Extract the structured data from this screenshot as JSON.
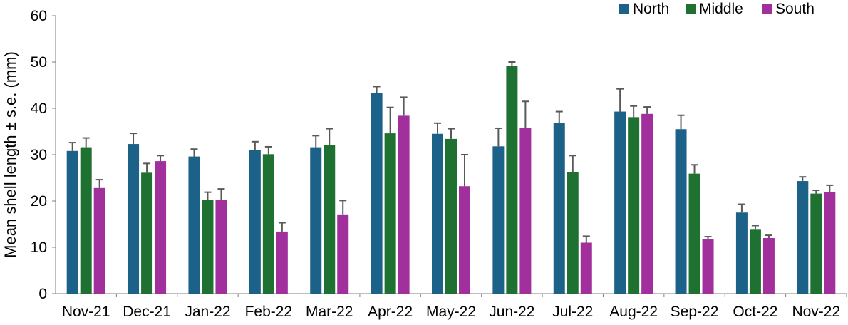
{
  "chart_data": {
    "type": "bar",
    "title": "",
    "xlabel": "",
    "ylabel": "Mean shell length ± s.e. (mm)",
    "ylim": [
      0,
      60
    ],
    "yticks": [
      0,
      10,
      20,
      30,
      40,
      50,
      60
    ],
    "grid": false,
    "legend_position": "top-right",
    "categories": [
      "Nov-21",
      "Dec-21",
      "Jan-22",
      "Feb-22",
      "Mar-22",
      "Apr-22",
      "May-22",
      "Jun-22",
      "Jul-22",
      "Aug-22",
      "Sep-22",
      "Oct-22",
      "Nov-22"
    ],
    "series": [
      {
        "name": "North",
        "color": "#1b6188",
        "values": [
          30.8,
          32.3,
          29.6,
          31.0,
          31.6,
          43.3,
          34.5,
          31.8,
          36.9,
          39.3,
          35.5,
          17.5,
          24.3
        ],
        "errors": [
          1.8,
          2.3,
          1.6,
          1.8,
          2.5,
          1.4,
          2.3,
          3.9,
          2.4,
          4.9,
          3.0,
          1.8,
          0.9
        ]
      },
      {
        "name": "Middle",
        "color": "#1e7130",
        "values": [
          31.6,
          26.1,
          20.3,
          30.1,
          32.0,
          34.6,
          33.4,
          49.2,
          26.2,
          38.1,
          25.9,
          13.8,
          21.6
        ]
      },
      {
        "name": "South",
        "color": "#a1309c",
        "values": [
          22.8,
          28.6,
          20.3,
          13.4,
          17.1,
          38.4,
          23.2,
          35.8,
          11.0,
          38.8,
          11.7,
          12.0,
          21.9
        ],
        "errors": [
          1.8,
          1.2,
          2.3,
          1.9,
          3.0,
          4.0,
          6.8,
          5.7,
          1.4,
          1.5,
          0.6,
          0.6,
          1.5
        ]
      }
    ]
  }
}
